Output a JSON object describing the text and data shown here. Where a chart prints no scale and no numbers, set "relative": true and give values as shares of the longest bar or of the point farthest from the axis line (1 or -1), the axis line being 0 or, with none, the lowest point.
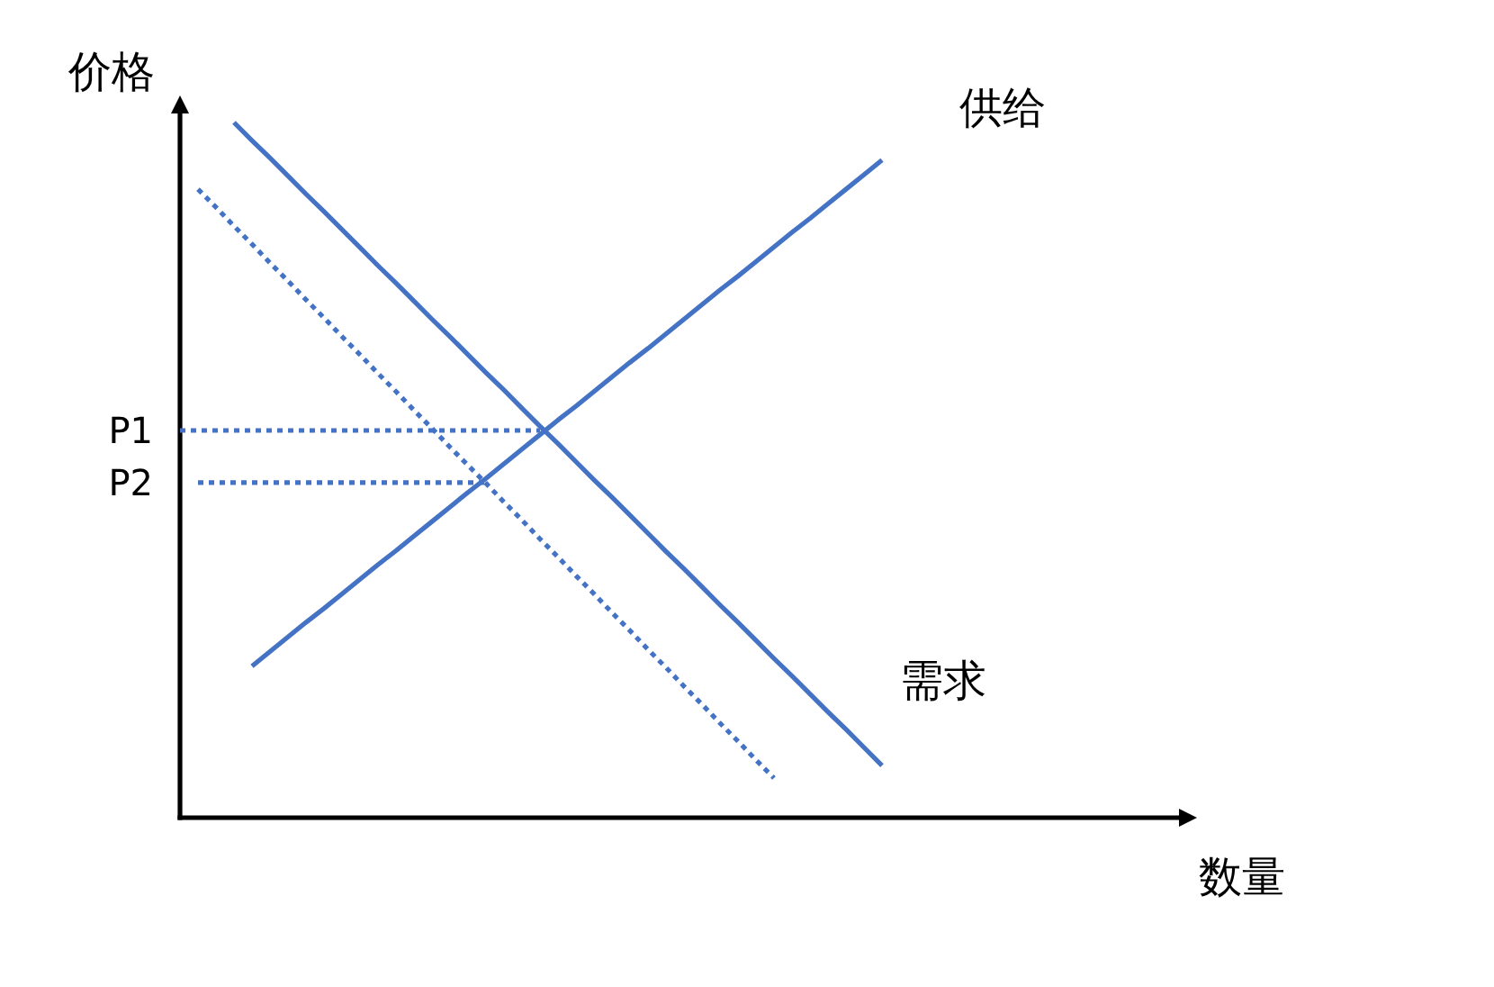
{
  "chart_data": {
    "type": "line",
    "relative": true,
    "ylabel": "价格",
    "annotations": [
      "数量"
    ],
    "categories": [
      null,
      null,
      null,
      null,
      null,
      null,
      null,
      null,
      null,
      null,
      null,
      null,
      null,
      null,
      null,
      null,
      null,
      null,
      null,
      null,
      null,
      null,
      null,
      null,
      null,
      null,
      null,
      null,
      null,
      null,
      null,
      null,
      null,
      null,
      null,
      null,
      null,
      null,
      null,
      null
    ],
    "series": [
      {
        "name": "供给",
        "color": "#4472c4",
        "values": [
          null,
          null,
          null,
          null,
          0.218,
          0.239,
          0.26,
          0.281,
          0.301,
          0.322,
          0.343,
          0.364,
          0.384,
          0.405,
          0.426,
          0.447,
          0.468,
          0.488,
          0.509,
          0.53,
          0.551,
          0.572,
          0.592,
          0.613,
          0.634,
          0.655,
          0.675,
          0.696,
          0.717,
          0.738,
          0.759,
          0.779,
          0.8,
          0.821,
          0.842,
          0.862,
          0.883,
          0.904,
          0.925,
          0.946
        ]
      },
      {
        "name": "需求",
        "color": "#4472c4",
        "values": [
          null,
          null,
          null,
          1.0,
          0.974,
          0.949,
          0.923,
          0.897,
          0.872,
          0.846,
          0.82,
          0.794,
          0.769,
          0.743,
          0.717,
          0.692,
          0.666,
          0.64,
          0.615,
          0.589,
          0.563,
          0.538,
          0.512,
          0.486,
          0.461,
          0.435,
          0.409,
          0.383,
          0.358,
          0.332,
          0.306,
          0.281,
          0.255,
          0.229,
          0.204,
          0.178,
          0.152,
          0.127,
          0.101,
          0.075
        ]
      },
      {
        "color": "#4472c4",
        "line_style": "dotted",
        "values": [
          null,
          0.904,
          0.878,
          0.851,
          0.825,
          0.798,
          0.772,
          0.745,
          0.719,
          0.692,
          0.666,
          0.639,
          0.613,
          0.586,
          0.56,
          0.533,
          0.507,
          0.481,
          0.454,
          0.428,
          0.401,
          0.375,
          0.348,
          0.322,
          0.295,
          0.269,
          0.242,
          0.216,
          0.189,
          0.163,
          0.136,
          0.11,
          0.083,
          0.057,
          null,
          null,
          null,
          null,
          null,
          null
        ]
      },
      {
        "name": "P1",
        "color": "#4472c4",
        "line_style": "dotted",
        "values": [
          0.557,
          0.557,
          0.557,
          0.557,
          0.557,
          0.557,
          0.557,
          0.557,
          0.557,
          0.557,
          0.557,
          0.557,
          0.557,
          0.557,
          0.557,
          0.557,
          0.557,
          0.557,
          0.557,
          0.557,
          0.557,
          null,
          null,
          null,
          null,
          null,
          null,
          null,
          null,
          null,
          null,
          null,
          null,
          null,
          null,
          null,
          null,
          null,
          null,
          null
        ]
      },
      {
        "name": "P2",
        "color": "#4472c4",
        "line_style": "dotted",
        "values": [
          null,
          0.482,
          0.482,
          0.482,
          0.482,
          0.482,
          0.482,
          0.482,
          0.482,
          0.482,
          0.482,
          0.482,
          0.482,
          0.482,
          0.482,
          0.482,
          0.482,
          0.482,
          null,
          null,
          null,
          null,
          null,
          null,
          null,
          null,
          null,
          null,
          null,
          null,
          null,
          null,
          null,
          null,
          null,
          null,
          null,
          null,
          null,
          null
        ]
      }
    ]
  }
}
